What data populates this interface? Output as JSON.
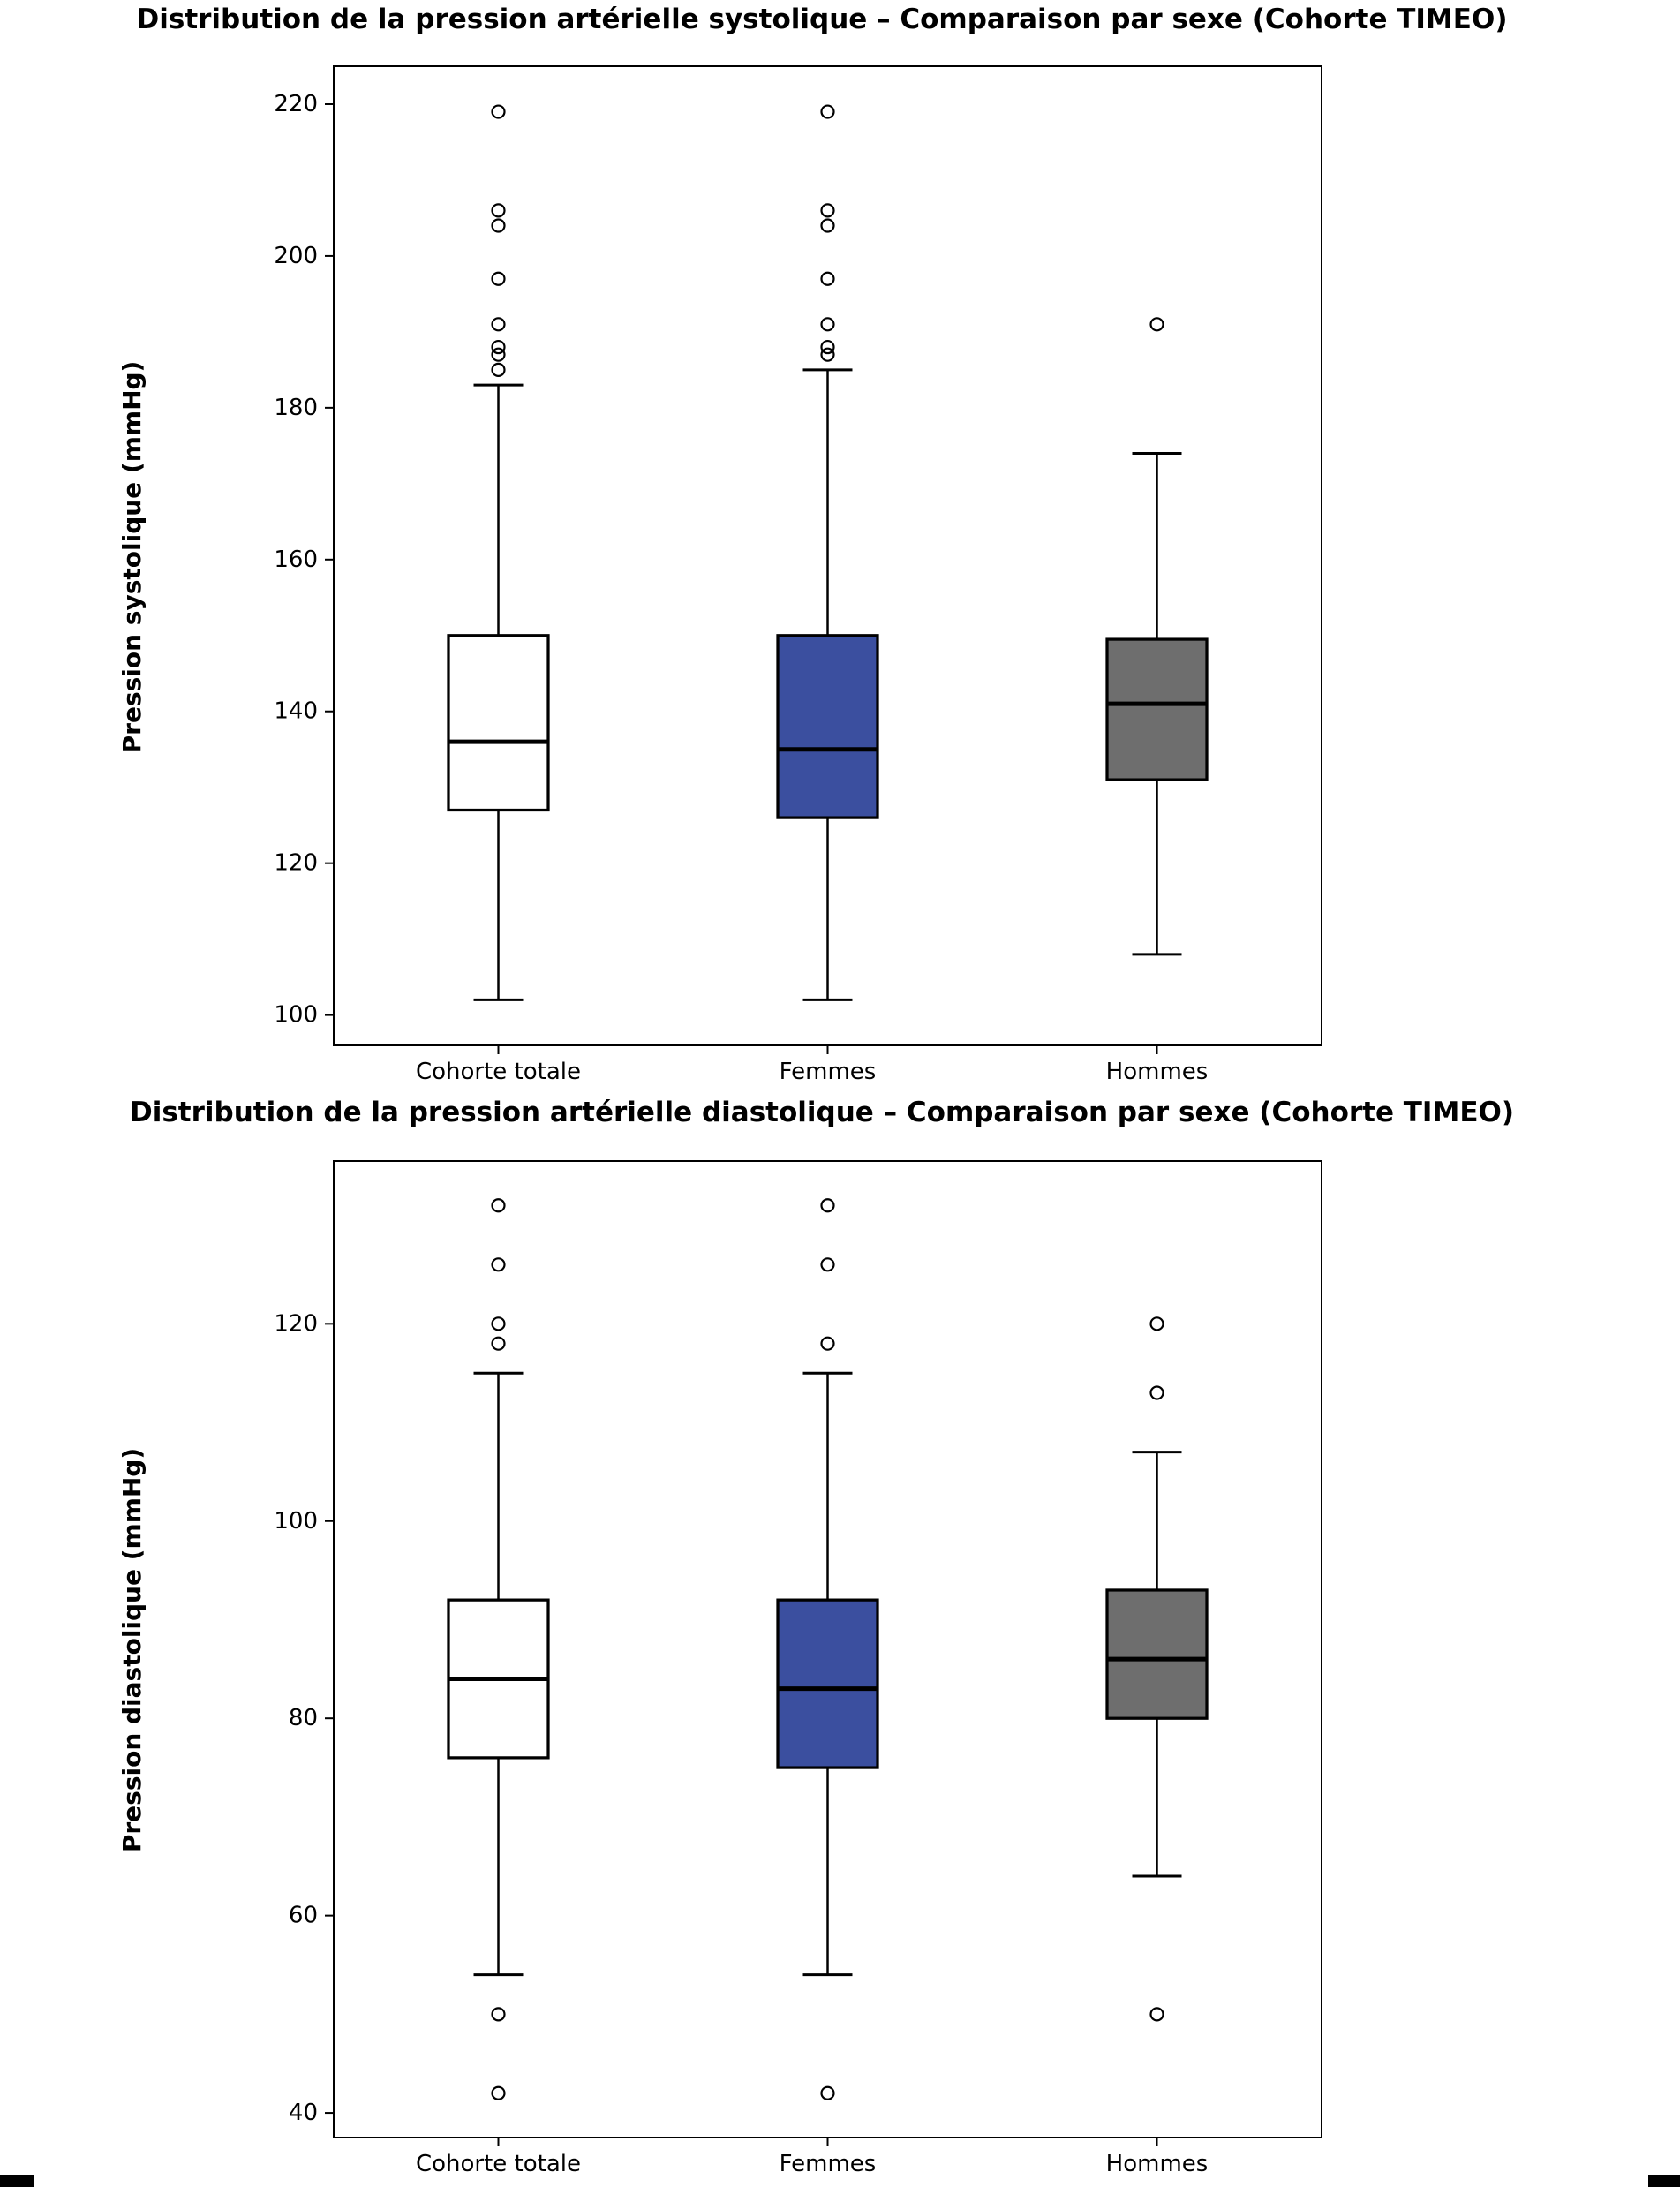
{
  "chart_data": [
    {
      "type": "boxplot",
      "title": "Distribution de la pression artérielle systolique – Comparaison par sexe (Cohorte TIMEO)",
      "ylabel": "Pression systolique (mmHg)",
      "categories": [
        "Cohorte totale",
        "Femmes",
        "Hommes"
      ],
      "yticks": [
        100,
        120,
        140,
        160,
        180,
        200,
        220
      ],
      "ylim": [
        96,
        225
      ],
      "grid": false,
      "legend": "none",
      "boxes": [
        {
          "category": "Cohorte totale",
          "fill": "#ffffff",
          "whisker_low": 102,
          "q1": 127,
          "median": 136,
          "q3": 150,
          "whisker_high": 183,
          "outliers": [
            185,
            187,
            188,
            191,
            197,
            204,
            206,
            219
          ]
        },
        {
          "category": "Femmes",
          "fill": "#3b4f9f",
          "whisker_low": 102,
          "q1": 126,
          "median": 135,
          "q3": 150,
          "whisker_high": 185,
          "outliers": [
            187,
            188,
            191,
            197,
            204,
            206,
            219
          ]
        },
        {
          "category": "Hommes",
          "fill": "#6e6e6e",
          "whisker_low": 108,
          "q1": 131,
          "median": 141,
          "q3": 149.5,
          "whisker_high": 174,
          "outliers": [
            191
          ]
        }
      ]
    },
    {
      "type": "boxplot",
      "title": "Distribution de la pression artérielle diastolique – Comparaison par sexe (Cohorte TIMEO)",
      "ylabel": "Pression diastolique (mmHg)",
      "categories": [
        "Cohorte totale",
        "Femmes",
        "Hommes"
      ],
      "yticks": [
        40,
        60,
        80,
        100,
        120
      ],
      "ylim": [
        37.5,
        136.5
      ],
      "grid": false,
      "legend": "none",
      "boxes": [
        {
          "category": "Cohorte totale",
          "fill": "#ffffff",
          "whisker_low": 54,
          "q1": 76,
          "median": 84,
          "q3": 92,
          "whisker_high": 115,
          "outliers": [
            42,
            50,
            118,
            120,
            126,
            132
          ]
        },
        {
          "category": "Femmes",
          "fill": "#3b4f9f",
          "whisker_low": 54,
          "q1": 75,
          "median": 83,
          "q3": 92,
          "whisker_high": 115,
          "outliers": [
            42,
            118,
            126,
            132
          ]
        },
        {
          "category": "Hommes",
          "fill": "#6e6e6e",
          "whisker_low": 64,
          "q1": 80,
          "median": 86,
          "q3": 93,
          "whisker_high": 107,
          "outliers": [
            50,
            113,
            120
          ]
        }
      ]
    }
  ],
  "style": {
    "line_color": "#000000",
    "background": "#ffffff"
  }
}
